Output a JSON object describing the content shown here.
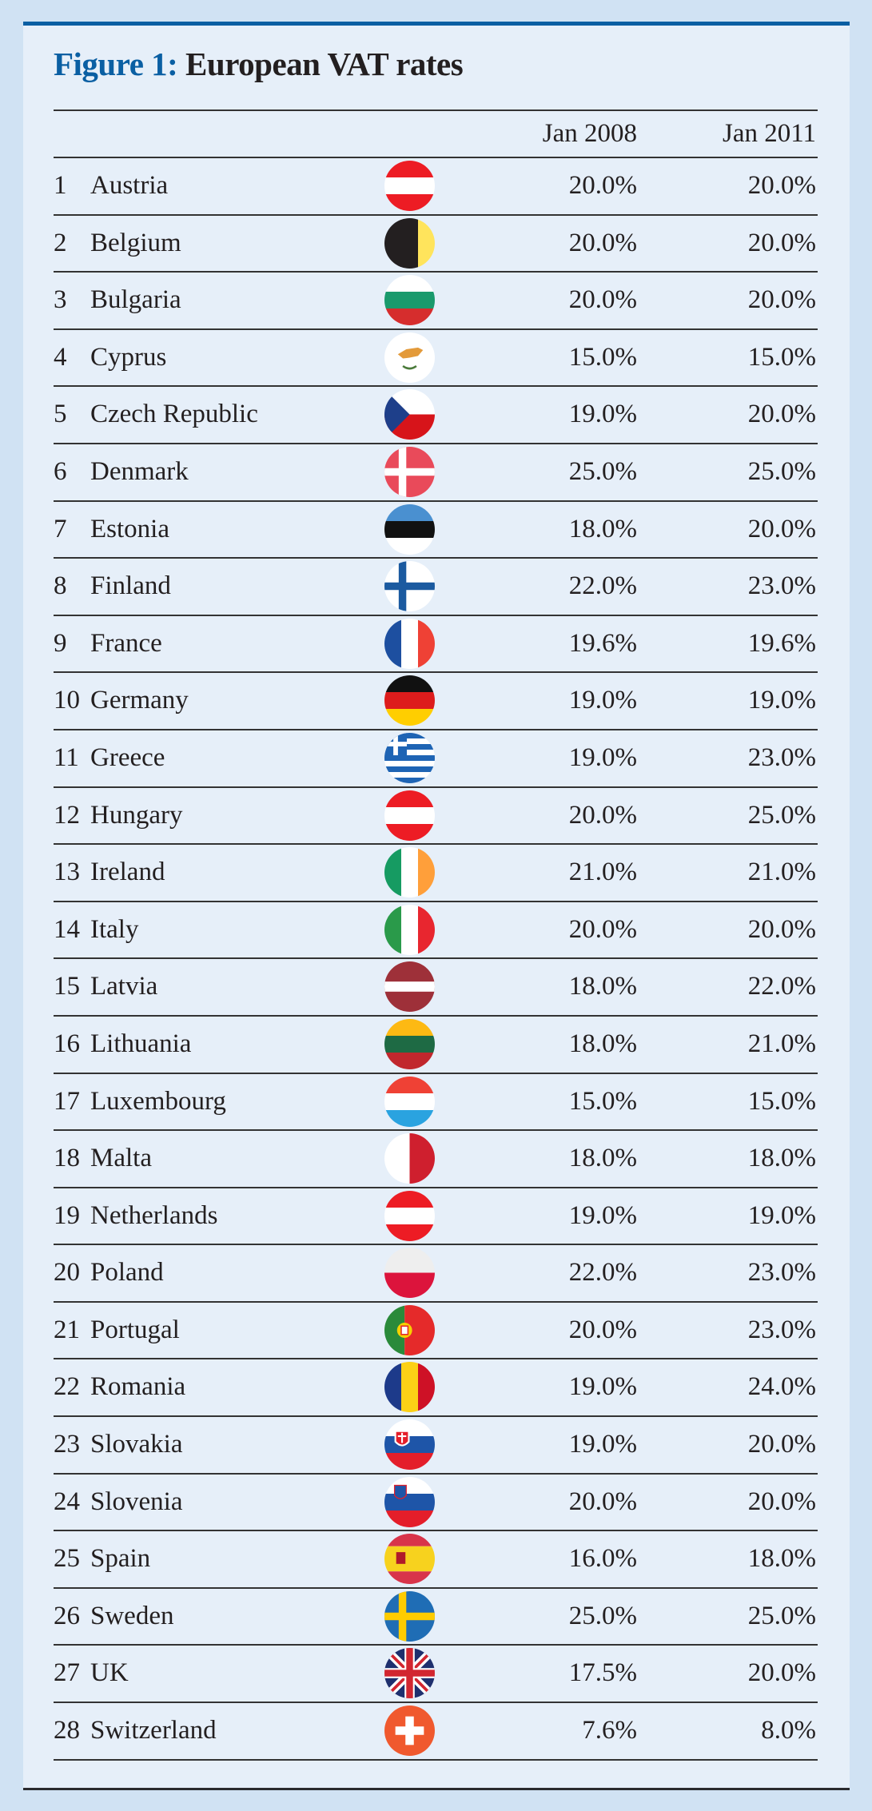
{
  "title": {
    "prefix": "Figure 1:",
    "text": "European VAT rates"
  },
  "colors": {
    "accent": "#0a5fa3",
    "panel": "#e6eff9",
    "background": "#d0e2f3"
  },
  "columns": [
    "Jan 2008",
    "Jan 2011"
  ],
  "rows": [
    {
      "n": "1",
      "country": "Austria",
      "jan2008": "20.0%",
      "jan2011": "20.0%",
      "flag": {
        "type": "h",
        "colors": [
          "#ed1c24",
          "#ffffff",
          "#ed1c24"
        ]
      }
    },
    {
      "n": "2",
      "country": "Belgium",
      "jan2008": "20.0%",
      "jan2011": "20.0%",
      "flag": {
        "type": "v",
        "colors": [
          "#231f20",
          "#231f20",
          "#ffe45c"
        ]
      }
    },
    {
      "n": "3",
      "country": "Bulgaria",
      "jan2008": "20.0%",
      "jan2011": "20.0%",
      "flag": {
        "type": "h",
        "colors": [
          "#ffffff",
          "#1a9a6c",
          "#d62d2d"
        ]
      }
    },
    {
      "n": "4",
      "country": "Cyprus",
      "jan2008": "15.0%",
      "jan2011": "15.0%",
      "flag": {
        "type": "cyprus",
        "colors": [
          "#ffffff",
          "#e39a3a",
          "#4a7a3a"
        ]
      }
    },
    {
      "n": "5",
      "country": "Czech Republic",
      "jan2008": "19.0%",
      "jan2011": "20.0%",
      "flag": {
        "type": "czech",
        "colors": [
          "#ffffff",
          "#d7141a",
          "#1e3f8a"
        ]
      }
    },
    {
      "n": "6",
      "country": "Denmark",
      "jan2008": "25.0%",
      "jan2011": "25.0%",
      "flag": {
        "type": "nordic",
        "colors": [
          "#e94a5a",
          "#ffffff"
        ]
      }
    },
    {
      "n": "7",
      "country": "Estonia",
      "jan2008": "18.0%",
      "jan2011": "20.0%",
      "flag": {
        "type": "h",
        "colors": [
          "#4a90d0",
          "#111111",
          "#ffffff"
        ]
      }
    },
    {
      "n": "8",
      "country": "Finland",
      "jan2008": "22.0%",
      "jan2011": "23.0%",
      "flag": {
        "type": "nordic",
        "colors": [
          "#ffffff",
          "#1b5aa0"
        ]
      }
    },
    {
      "n": "9",
      "country": "France",
      "jan2008": "19.6%",
      "jan2011": "19.6%",
      "flag": {
        "type": "v",
        "colors": [
          "#1d4fa0",
          "#ffffff",
          "#ef4135"
        ]
      }
    },
    {
      "n": "10",
      "country": "Germany",
      "jan2008": "19.0%",
      "jan2011": "19.0%",
      "flag": {
        "type": "h",
        "colors": [
          "#111111",
          "#dd1c1c",
          "#ffce00"
        ]
      }
    },
    {
      "n": "11",
      "country": "Greece",
      "jan2008": "19.0%",
      "jan2011": "23.0%",
      "flag": {
        "type": "greece",
        "colors": [
          "#1e64b4",
          "#ffffff"
        ]
      }
    },
    {
      "n": "12",
      "country": "Hungary",
      "jan2008": "20.0%",
      "jan2011": "25.0%",
      "flag": {
        "type": "h",
        "colors": [
          "#ed1c24",
          "#ffffff",
          "#ed1c24"
        ]
      }
    },
    {
      "n": "13",
      "country": "Ireland",
      "jan2008": "21.0%",
      "jan2011": "21.0%",
      "flag": {
        "type": "v",
        "colors": [
          "#169b62",
          "#ffffff",
          "#ff9f3a"
        ]
      }
    },
    {
      "n": "14",
      "country": "Italy",
      "jan2008": "20.0%",
      "jan2011": "20.0%",
      "flag": {
        "type": "v",
        "colors": [
          "#2a9a4a",
          "#ffffff",
          "#e8262f"
        ]
      }
    },
    {
      "n": "15",
      "country": "Latvia",
      "jan2008": "18.0%",
      "jan2011": "22.0%",
      "flag": {
        "type": "latvia",
        "colors": [
          "#9e3039",
          "#ffffff"
        ]
      }
    },
    {
      "n": "16",
      "country": "Lithuania",
      "jan2008": "18.0%",
      "jan2011": "21.0%",
      "flag": {
        "type": "h",
        "colors": [
          "#fdb913",
          "#1e6a44",
          "#c1272d"
        ]
      }
    },
    {
      "n": "17",
      "country": "Luxembourg",
      "jan2008": "15.0%",
      "jan2011": "15.0%",
      "flag": {
        "type": "h",
        "colors": [
          "#ef4135",
          "#ffffff",
          "#2aa3e0"
        ]
      }
    },
    {
      "n": "18",
      "country": "Malta",
      "jan2008": "18.0%",
      "jan2011": "18.0%",
      "flag": {
        "type": "v2",
        "colors": [
          "#ffffff",
          "#cf1f2e"
        ]
      }
    },
    {
      "n": "19",
      "country": "Netherlands",
      "jan2008": "19.0%",
      "jan2011": "19.0%",
      "flag": {
        "type": "h",
        "colors": [
          "#ed1c24",
          "#ffffff",
          "#ed1c24"
        ]
      }
    },
    {
      "n": "20",
      "country": "Poland",
      "jan2008": "22.0%",
      "jan2011": "23.0%",
      "flag": {
        "type": "h2",
        "colors": [
          "#eeeeee",
          "#dc143c"
        ]
      }
    },
    {
      "n": "21",
      "country": "Portugal",
      "jan2008": "20.0%",
      "jan2011": "23.0%",
      "flag": {
        "type": "portugal",
        "colors": [
          "#2a8a3a",
          "#e52a2a",
          "#f7d000"
        ]
      }
    },
    {
      "n": "22",
      "country": "Romania",
      "jan2008": "19.0%",
      "jan2011": "24.0%",
      "flag": {
        "type": "v",
        "colors": [
          "#1d3a8a",
          "#fcd116",
          "#ce1126"
        ]
      }
    },
    {
      "n": "23",
      "country": "Slovakia",
      "jan2008": "19.0%",
      "jan2011": "20.0%",
      "flag": {
        "type": "slav",
        "colors": [
          "#ffffff",
          "#1e55a8",
          "#e41e2a"
        ]
      }
    },
    {
      "n": "24",
      "country": "Slovenia",
      "jan2008": "20.0%",
      "jan2011": "20.0%",
      "flag": {
        "type": "slav",
        "colors": [
          "#ffffff",
          "#1e55a8",
          "#e41e2a"
        ]
      }
    },
    {
      "n": "25",
      "country": "Spain",
      "jan2008": "16.0%",
      "jan2011": "18.0%",
      "flag": {
        "type": "spain",
        "colors": [
          "#d8344a",
          "#f7d21e",
          "#b01a2a"
        ]
      }
    },
    {
      "n": "26",
      "country": "Sweden",
      "jan2008": "25.0%",
      "jan2011": "25.0%",
      "flag": {
        "type": "nordic",
        "colors": [
          "#1f6db5",
          "#fecc00"
        ]
      }
    },
    {
      "n": "27",
      "country": "UK",
      "jan2008": "17.5%",
      "jan2011": "20.0%",
      "flag": {
        "type": "uk",
        "colors": [
          "#1e2f6e",
          "#ffffff",
          "#d22630"
        ]
      }
    },
    {
      "n": "28",
      "country": "Switzerland",
      "jan2008": "7.6%",
      "jan2011": "8.0%",
      "flag": {
        "type": "swiss",
        "colors": [
          "#f0592e",
          "#ffffff"
        ]
      }
    }
  ]
}
